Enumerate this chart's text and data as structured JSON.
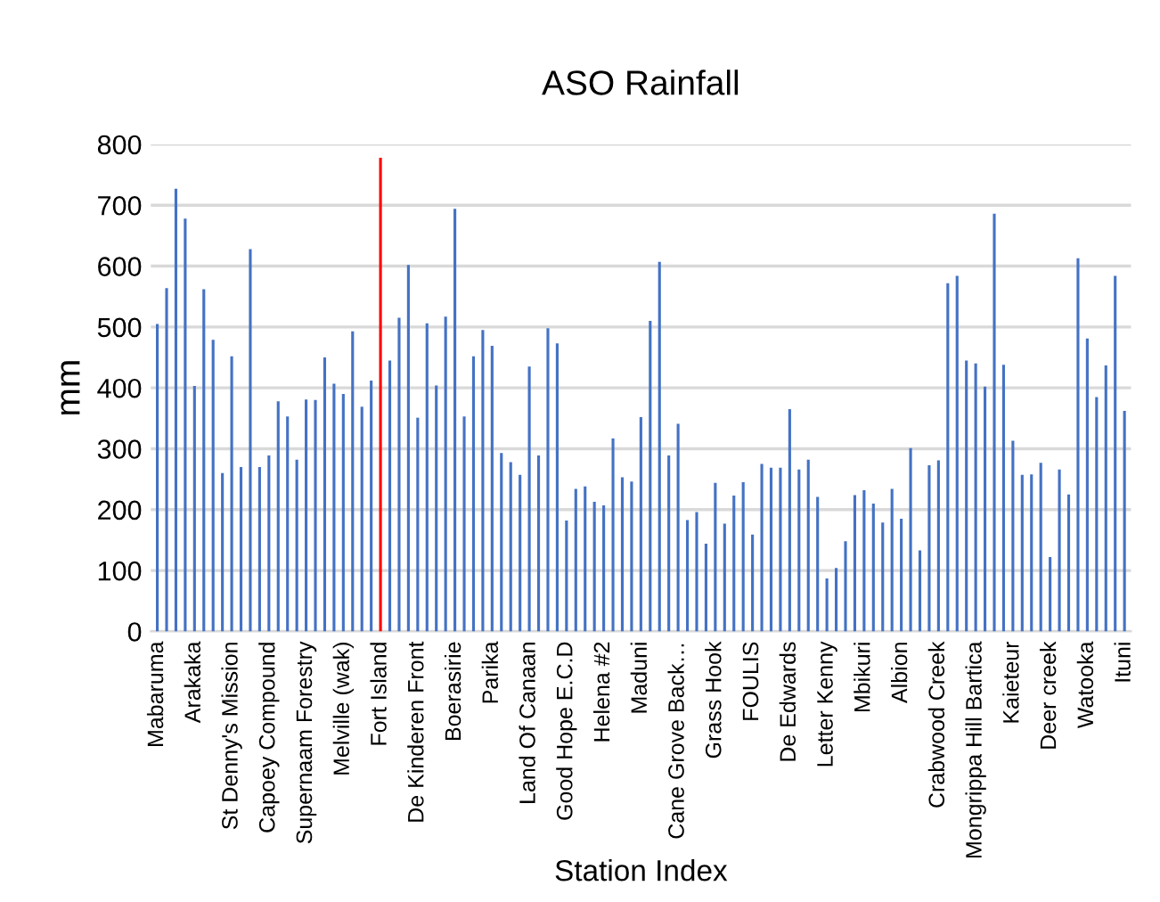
{
  "chart_data": {
    "type": "bar",
    "title": "ASO Rainfall",
    "xlabel": "Station Index",
    "ylabel": "mm",
    "categories": [
      "Mabaruma",
      null,
      null,
      null,
      "Arakaka",
      null,
      null,
      null,
      "St Denny's Mission",
      null,
      null,
      null,
      "Capoey Compound",
      null,
      null,
      null,
      "Supernaam Forestry",
      null,
      null,
      null,
      "Melville (wak)",
      null,
      null,
      null,
      "Fort Island",
      null,
      null,
      null,
      "De Kinderen Front",
      null,
      null,
      null,
      "Boerasirie",
      null,
      null,
      null,
      "Parika",
      null,
      null,
      null,
      "Land Of Canaan",
      null,
      null,
      null,
      "Good Hope E.C.D",
      null,
      null,
      null,
      "Helena #2",
      null,
      null,
      null,
      "Maduni",
      null,
      null,
      null,
      "Cane Grove Back…",
      null,
      null,
      null,
      "Grass Hook",
      null,
      null,
      null,
      "FOULIS",
      null,
      null,
      null,
      "De Edwards",
      null,
      null,
      null,
      "Letter Kenny",
      null,
      null,
      null,
      "Mbikuri",
      null,
      null,
      null,
      "Albion",
      null,
      null,
      null,
      "Crabwood Creek",
      null,
      null,
      null,
      "Mongrippa Hill Bartica",
      null,
      null,
      null,
      "Kaieteur",
      null,
      null,
      null,
      "Deer creek",
      null,
      null,
      null,
      "Watooka",
      null,
      null,
      null,
      "Ituni"
    ],
    "values": [
      505,
      564,
      727,
      678,
      403,
      562,
      479,
      260,
      452,
      270,
      628,
      270,
      289,
      378,
      353,
      282,
      381,
      380,
      450,
      407,
      390,
      493,
      369,
      412,
      778,
      445,
      515,
      602,
      351,
      506,
      404,
      517,
      694,
      353,
      452,
      495,
      469,
      293,
      278,
      257,
      435,
      289,
      498,
      473,
      182,
      234,
      238,
      213,
      207,
      317,
      253,
      246,
      352,
      510,
      607,
      289,
      341,
      183,
      196,
      144,
      244,
      177,
      223,
      245,
      159,
      275,
      269,
      269,
      365,
      266,
      282,
      221,
      87,
      104,
      148,
      224,
      232,
      210,
      179,
      234,
      185,
      301,
      133,
      273,
      281,
      572,
      584,
      445,
      440,
      402,
      686,
      438,
      313,
      257,
      258,
      277,
      122,
      266,
      225,
      613,
      481,
      385,
      437,
      584,
      362
    ],
    "colors": [
      "#4472c4",
      "#4472c4",
      "#4472c4",
      "#4472c4",
      "#4472c4",
      "#4472c4",
      "#4472c4",
      "#4472c4",
      "#4472c4",
      "#4472c4",
      "#4472c4",
      "#4472c4",
      "#4472c4",
      "#4472c4",
      "#4472c4",
      "#4472c4",
      "#4472c4",
      "#4472c4",
      "#4472c4",
      "#4472c4",
      "#4472c4",
      "#4472c4",
      "#4472c4",
      "#4472c4",
      "#ff0000",
      "#4472c4",
      "#4472c4",
      "#4472c4",
      "#4472c4",
      "#4472c4",
      "#4472c4",
      "#4472c4",
      "#4472c4",
      "#4472c4",
      "#4472c4",
      "#4472c4",
      "#4472c4",
      "#4472c4",
      "#4472c4",
      "#4472c4",
      "#4472c4",
      "#4472c4",
      "#4472c4",
      "#4472c4",
      "#4472c4",
      "#4472c4",
      "#4472c4",
      "#4472c4",
      "#4472c4",
      "#4472c4",
      "#4472c4",
      "#4472c4",
      "#4472c4",
      "#4472c4",
      "#4472c4",
      "#4472c4",
      "#4472c4",
      "#4472c4",
      "#4472c4",
      "#4472c4",
      "#4472c4",
      "#4472c4",
      "#4472c4",
      "#4472c4",
      "#4472c4",
      "#4472c4",
      "#4472c4",
      "#4472c4",
      "#4472c4",
      "#4472c4",
      "#4472c4",
      "#4472c4",
      "#4472c4",
      "#4472c4",
      "#4472c4",
      "#4472c4",
      "#4472c4",
      "#4472c4",
      "#4472c4",
      "#4472c4",
      "#4472c4",
      "#4472c4",
      "#4472c4",
      "#4472c4",
      "#4472c4",
      "#4472c4",
      "#4472c4",
      "#4472c4",
      "#4472c4",
      "#4472c4",
      "#4472c4",
      "#4472c4",
      "#4472c4",
      "#4472c4",
      "#4472c4",
      "#4472c4",
      "#4472c4",
      "#4472c4",
      "#4472c4",
      "#4472c4",
      "#4472c4",
      "#4472c4",
      "#4472c4",
      "#4472c4",
      "#4472c4"
    ],
    "ylim": [
      0,
      800
    ],
    "yticks": [
      0,
      100,
      200,
      300,
      400,
      500,
      600,
      700,
      800
    ],
    "grid": "y"
  }
}
